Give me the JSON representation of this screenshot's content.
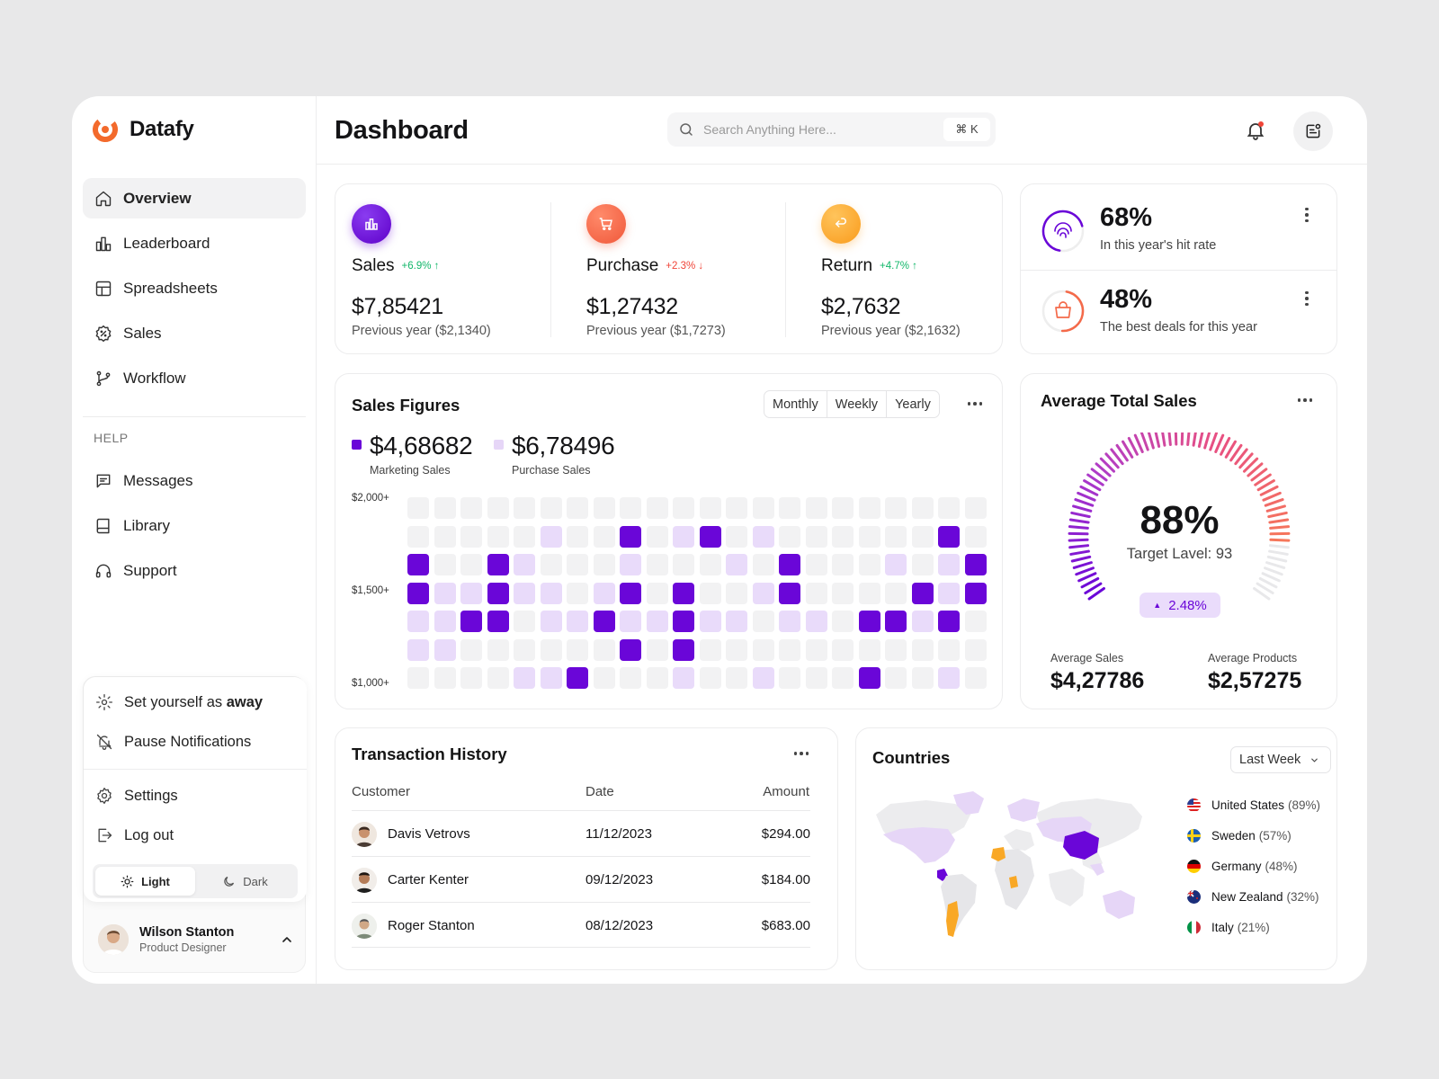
{
  "app": {
    "name": "Datafy",
    "brand_color": "#f36a2c",
    "accent": "#6a06d8"
  },
  "sidebar": {
    "nav": [
      {
        "label": "Overview",
        "icon": "home-icon",
        "active": true
      },
      {
        "label": "Leaderboard",
        "icon": "leaderboard-icon"
      },
      {
        "label": "Spreadsheets",
        "icon": "spreadsheet-icon"
      },
      {
        "label": "Sales",
        "icon": "sales-badge-icon"
      },
      {
        "label": "Workflow",
        "icon": "workflow-icon"
      }
    ],
    "help_label": "HELP",
    "help": [
      {
        "label": "Messages",
        "icon": "message-icon"
      },
      {
        "label": "Library",
        "icon": "book-icon"
      },
      {
        "label": "Support",
        "icon": "headphones-icon"
      }
    ],
    "panel": {
      "away_prefix": "Set yourself as ",
      "away_strong": "away",
      "pause": "Pause Notifications",
      "settings": "Settings",
      "logout": "Log out",
      "theme_light": "Light",
      "theme_dark": "Dark"
    },
    "user": {
      "name": "Wilson Stanton",
      "role": "Product Designer"
    }
  },
  "header": {
    "title": "Dashboard",
    "search_placeholder": "Search Anything Here...",
    "shortcut": "⌘ K"
  },
  "stats": [
    {
      "name": "Sales",
      "change": "+6.9%",
      "direction": "up",
      "value": "$7,85421",
      "prev": "Previous year ($2,1340)",
      "color": "#6a06d8"
    },
    {
      "name": "Purchase",
      "change": "+2.3%",
      "direction": "down",
      "value": "$1,27432",
      "prev": "Previous year ($1,7273)",
      "color": "#f46a4a"
    },
    {
      "name": "Return",
      "change": "+4.7%",
      "direction": "up",
      "value": "$2,7632",
      "prev": "Previous year ($2,1632)",
      "color": "#fba93a"
    }
  ],
  "rates": [
    {
      "value": "68%",
      "label": "In this year's hit rate"
    },
    {
      "value": "48%",
      "label": "The best deals for this year"
    }
  ],
  "sales_figures": {
    "title": "Sales Figures",
    "tabs": [
      "Monthly",
      "Weekly",
      "Yearly"
    ],
    "marketing_value": "$4,68682",
    "marketing_label": "Marketing Sales",
    "purchase_value": "$6,78496",
    "purchase_label": "Purchase Sales",
    "y_labels": [
      "$2,000+",
      "$1,500+",
      "$1,000+"
    ],
    "grid": [
      "0000000000000000000000",
      "0000020010210200000010",
      "1001200020002010002021",
      "1221220210100210000121",
      "2211022122122022011210",
      "2200000010100000000000",
      "0000221000200200010020"
    ]
  },
  "average": {
    "title": "Average Total Sales",
    "percent": "88%",
    "target": "Target Lavel: 93",
    "change": "2.48%",
    "avg_sales_label": "Average Sales",
    "avg_sales": "$4,27786",
    "avg_products_label": "Average Products",
    "avg_products": "$2,57275",
    "fill": 0.88
  },
  "transactions": {
    "title": "Transaction History",
    "columns": [
      "Customer",
      "Date",
      "Amount"
    ],
    "rows": [
      {
        "customer": "Davis Vetrovs",
        "date": "11/12/2023",
        "amount": "$294.00"
      },
      {
        "customer": "Carter Kenter",
        "date": "09/12/2023",
        "amount": "$184.00"
      },
      {
        "customer": "Roger Stanton",
        "date": "08/12/2023",
        "amount": "$683.00"
      }
    ]
  },
  "countries": {
    "title": "Countries",
    "period": "Last Week",
    "items": [
      {
        "name": "United States",
        "pct": "(89%)"
      },
      {
        "name": "Sweden",
        "pct": "(57%)"
      },
      {
        "name": "Germany",
        "pct": "(48%)"
      },
      {
        "name": "New Zealand",
        "pct": "(32%)"
      },
      {
        "name": "Italy",
        "pct": "(21%)"
      }
    ]
  }
}
